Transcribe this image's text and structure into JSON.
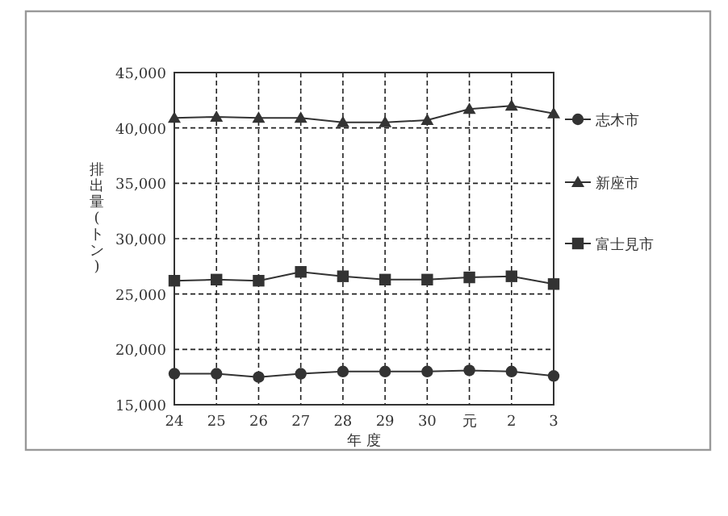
{
  "chart_data": {
    "type": "line",
    "ylabel": "排出量(トン)",
    "xlabel": "年 度",
    "categories": [
      "24",
      "25",
      "26",
      "27",
      "28",
      "29",
      "30",
      "元",
      "2",
      "3"
    ],
    "series": [
      {
        "name": "志木市",
        "color": "#333333",
        "marker": "circle",
        "values": [
          17800,
          17800,
          17500,
          17800,
          18000,
          18000,
          18000,
          18100,
          18000,
          17600
        ]
      },
      {
        "name": "新座市",
        "color": "#333333",
        "marker": "triangle",
        "values": [
          40900,
          41000,
          40900,
          40900,
          40500,
          40500,
          40700,
          41700,
          42000,
          41300
        ]
      },
      {
        "name": "富士見市",
        "color": "#333333",
        "marker": "square",
        "values": [
          26200,
          26300,
          26200,
          27000,
          26600,
          26300,
          26300,
          26500,
          26600,
          25900
        ]
      }
    ],
    "ylim": [
      15000,
      45000
    ],
    "yticks": [
      {
        "value": 15000,
        "label": "15,000"
      },
      {
        "value": 20000,
        "label": "20,000"
      },
      {
        "value": 25000,
        "label": "25,000"
      },
      {
        "value": 30000,
        "label": "30,000"
      },
      {
        "value": 35000,
        "label": "35,000"
      },
      {
        "value": 40000,
        "label": "40,000"
      },
      {
        "value": 45000,
        "label": "45,000"
      }
    ],
    "grid": true,
    "legend": "right",
    "line_style": "solid"
  }
}
